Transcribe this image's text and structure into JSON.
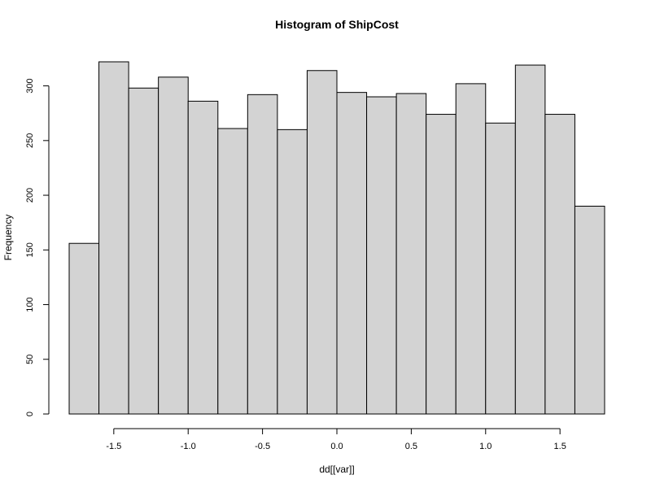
{
  "chart_data": {
    "type": "bar",
    "title": "Histogram of ShipCost",
    "xlabel": "dd[[var]]",
    "ylabel": "Frequency",
    "bin_edges": [
      -1.8,
      -1.6,
      -1.4,
      -1.2,
      -1.0,
      -0.8,
      -0.6,
      -0.4,
      -0.2,
      0.0,
      0.2,
      0.4,
      0.6,
      0.8,
      1.0,
      1.2,
      1.4,
      1.6,
      1.8
    ],
    "values": [
      156,
      322,
      298,
      308,
      286,
      261,
      292,
      260,
      314,
      294,
      290,
      293,
      274,
      302,
      266,
      319,
      274,
      190
    ],
    "xlim": [
      -1.8,
      1.8
    ],
    "ylim": [
      0,
      322
    ],
    "x_ticks": [
      -1.5,
      -1.0,
      -0.5,
      0.0,
      0.5,
      1.0,
      1.5
    ],
    "x_tick_labels": [
      "-1.5",
      "-1.0",
      "-0.5",
      "0.0",
      "0.5",
      "1.0",
      "1.5"
    ],
    "y_ticks": [
      0,
      50,
      100,
      150,
      200,
      250,
      300
    ],
    "y_tick_labels": [
      "0",
      "50",
      "100",
      "150",
      "200",
      "250",
      "300"
    ],
    "grid": false,
    "bar_color": "#d3d3d3",
    "edge_color": "#000000"
  }
}
